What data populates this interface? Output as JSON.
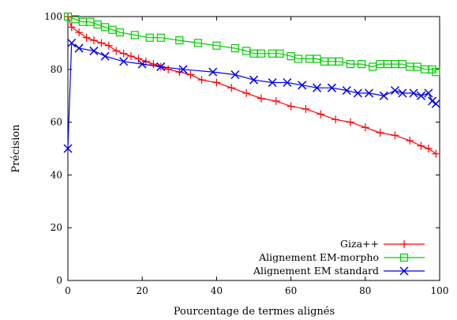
{
  "chart_data": {
    "type": "line",
    "title": "",
    "xlabel": "Pourcentage de termes alignés",
    "ylabel": "Précision",
    "xlim": [
      0,
      100
    ],
    "ylim": [
      0,
      100
    ],
    "xticks": [
      "0",
      "20",
      "40",
      "60",
      "80",
      "100"
    ],
    "yticks": [
      "0",
      "20",
      "40",
      "60",
      "80",
      "100"
    ],
    "grid": false,
    "legend_position": "bottom-right",
    "series": [
      {
        "name": "Giza++",
        "color": "#ff0000",
        "marker": "plus",
        "x": [
          0,
          1,
          3,
          5,
          7,
          9,
          11,
          13,
          15,
          17,
          19,
          21,
          23,
          25,
          27,
          30,
          33,
          36,
          40,
          44,
          48,
          52,
          56,
          60,
          64,
          68,
          72,
          76,
          80,
          84,
          88,
          92,
          95,
          97,
          99
        ],
        "y": [
          100,
          96,
          94,
          92,
          91,
          90,
          89,
          87,
          86,
          85,
          84,
          83,
          82,
          81,
          80,
          79,
          78,
          76,
          75,
          73,
          71,
          69,
          68,
          66,
          65,
          63,
          61,
          60,
          58,
          56,
          55,
          53,
          51,
          50,
          48
        ]
      },
      {
        "name": "Alignement EM-morpho",
        "color": "#00cc00",
        "marker": "square",
        "x": [
          0,
          2,
          4,
          6,
          8,
          10,
          12,
          14,
          18,
          22,
          25,
          30,
          35,
          40,
          45,
          48,
          50,
          52,
          55,
          57,
          60,
          62,
          65,
          67,
          69,
          71,
          73,
          76,
          79,
          82,
          84,
          86,
          88,
          90,
          92,
          94,
          96,
          98,
          99
        ],
        "y": [
          100,
          99,
          98,
          98,
          97,
          96,
          95,
          94,
          93,
          92,
          92,
          91,
          90,
          89,
          88,
          87,
          86,
          86,
          86,
          86,
          85,
          84,
          84,
          84,
          83,
          83,
          83,
          82,
          82,
          81,
          82,
          82,
          82,
          82,
          81,
          81,
          80,
          80,
          79
        ]
      },
      {
        "name": "Alignement EM standard",
        "color": "#0000ee",
        "marker": "x",
        "x": [
          0,
          1,
          3,
          7,
          10,
          15,
          20,
          25,
          31,
          39,
          45,
          50,
          55,
          59,
          63,
          67,
          71,
          75,
          78,
          81,
          85,
          88,
          90,
          93,
          95,
          97,
          98,
          99
        ],
        "y": [
          50,
          90,
          88,
          87,
          85,
          83,
          82,
          81,
          80,
          79,
          78,
          76,
          75,
          75,
          74,
          73,
          73,
          72,
          71,
          71,
          70,
          72,
          71,
          71,
          70,
          71,
          68,
          67
        ]
      }
    ]
  }
}
